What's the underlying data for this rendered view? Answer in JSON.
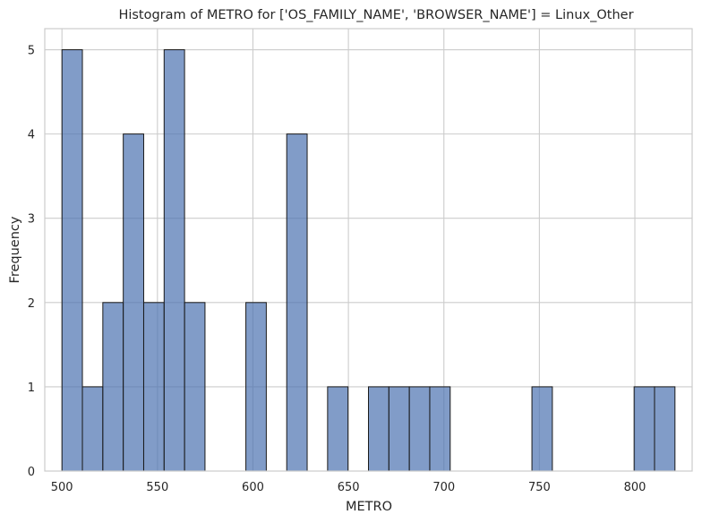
{
  "chart_data": {
    "type": "bar",
    "title": "Histogram of METRO for ['OS_FAMILY_NAME', 'BROWSER_NAME'] = Linux_Other",
    "xlabel": "METRO",
    "ylabel": "Frequency",
    "xlim": [
      491,
      830
    ],
    "ylim": [
      0,
      5.25
    ],
    "xticks": [
      500,
      550,
      600,
      650,
      700,
      750,
      800
    ],
    "yticks": [
      0,
      1,
      2,
      3,
      4,
      5
    ],
    "grid": true,
    "bin_start": 500,
    "bin_width": 10.7,
    "bars": [
      {
        "x0": 500.0,
        "x1": 510.7,
        "value": 5
      },
      {
        "x0": 510.7,
        "x1": 521.4,
        "value": 1
      },
      {
        "x0": 521.4,
        "x1": 532.1,
        "value": 2
      },
      {
        "x0": 532.1,
        "x1": 542.8,
        "value": 4
      },
      {
        "x0": 542.8,
        "x1": 553.5,
        "value": 2
      },
      {
        "x0": 553.5,
        "x1": 564.2,
        "value": 5
      },
      {
        "x0": 564.2,
        "x1": 574.9,
        "value": 2
      },
      {
        "x0": 596.3,
        "x1": 607.0,
        "value": 2
      },
      {
        "x0": 617.7,
        "x1": 628.4,
        "value": 4
      },
      {
        "x0": 639.1,
        "x1": 649.8,
        "value": 1
      },
      {
        "x0": 660.5,
        "x1": 671.2,
        "value": 1
      },
      {
        "x0": 671.2,
        "x1": 681.9,
        "value": 1
      },
      {
        "x0": 681.9,
        "x1": 692.6,
        "value": 1
      },
      {
        "x0": 692.6,
        "x1": 703.3,
        "value": 1
      },
      {
        "x0": 746.1,
        "x1": 756.8,
        "value": 1
      },
      {
        "x0": 799.6,
        "x1": 810.3,
        "value": 1
      },
      {
        "x0": 810.3,
        "x1": 821.0,
        "value": 1
      }
    ],
    "colors": {
      "bar_fill": "#4c72b0",
      "bar_edge": "#1a1a1a",
      "grid": "#cccccc",
      "frame": "#cccccc"
    }
  }
}
